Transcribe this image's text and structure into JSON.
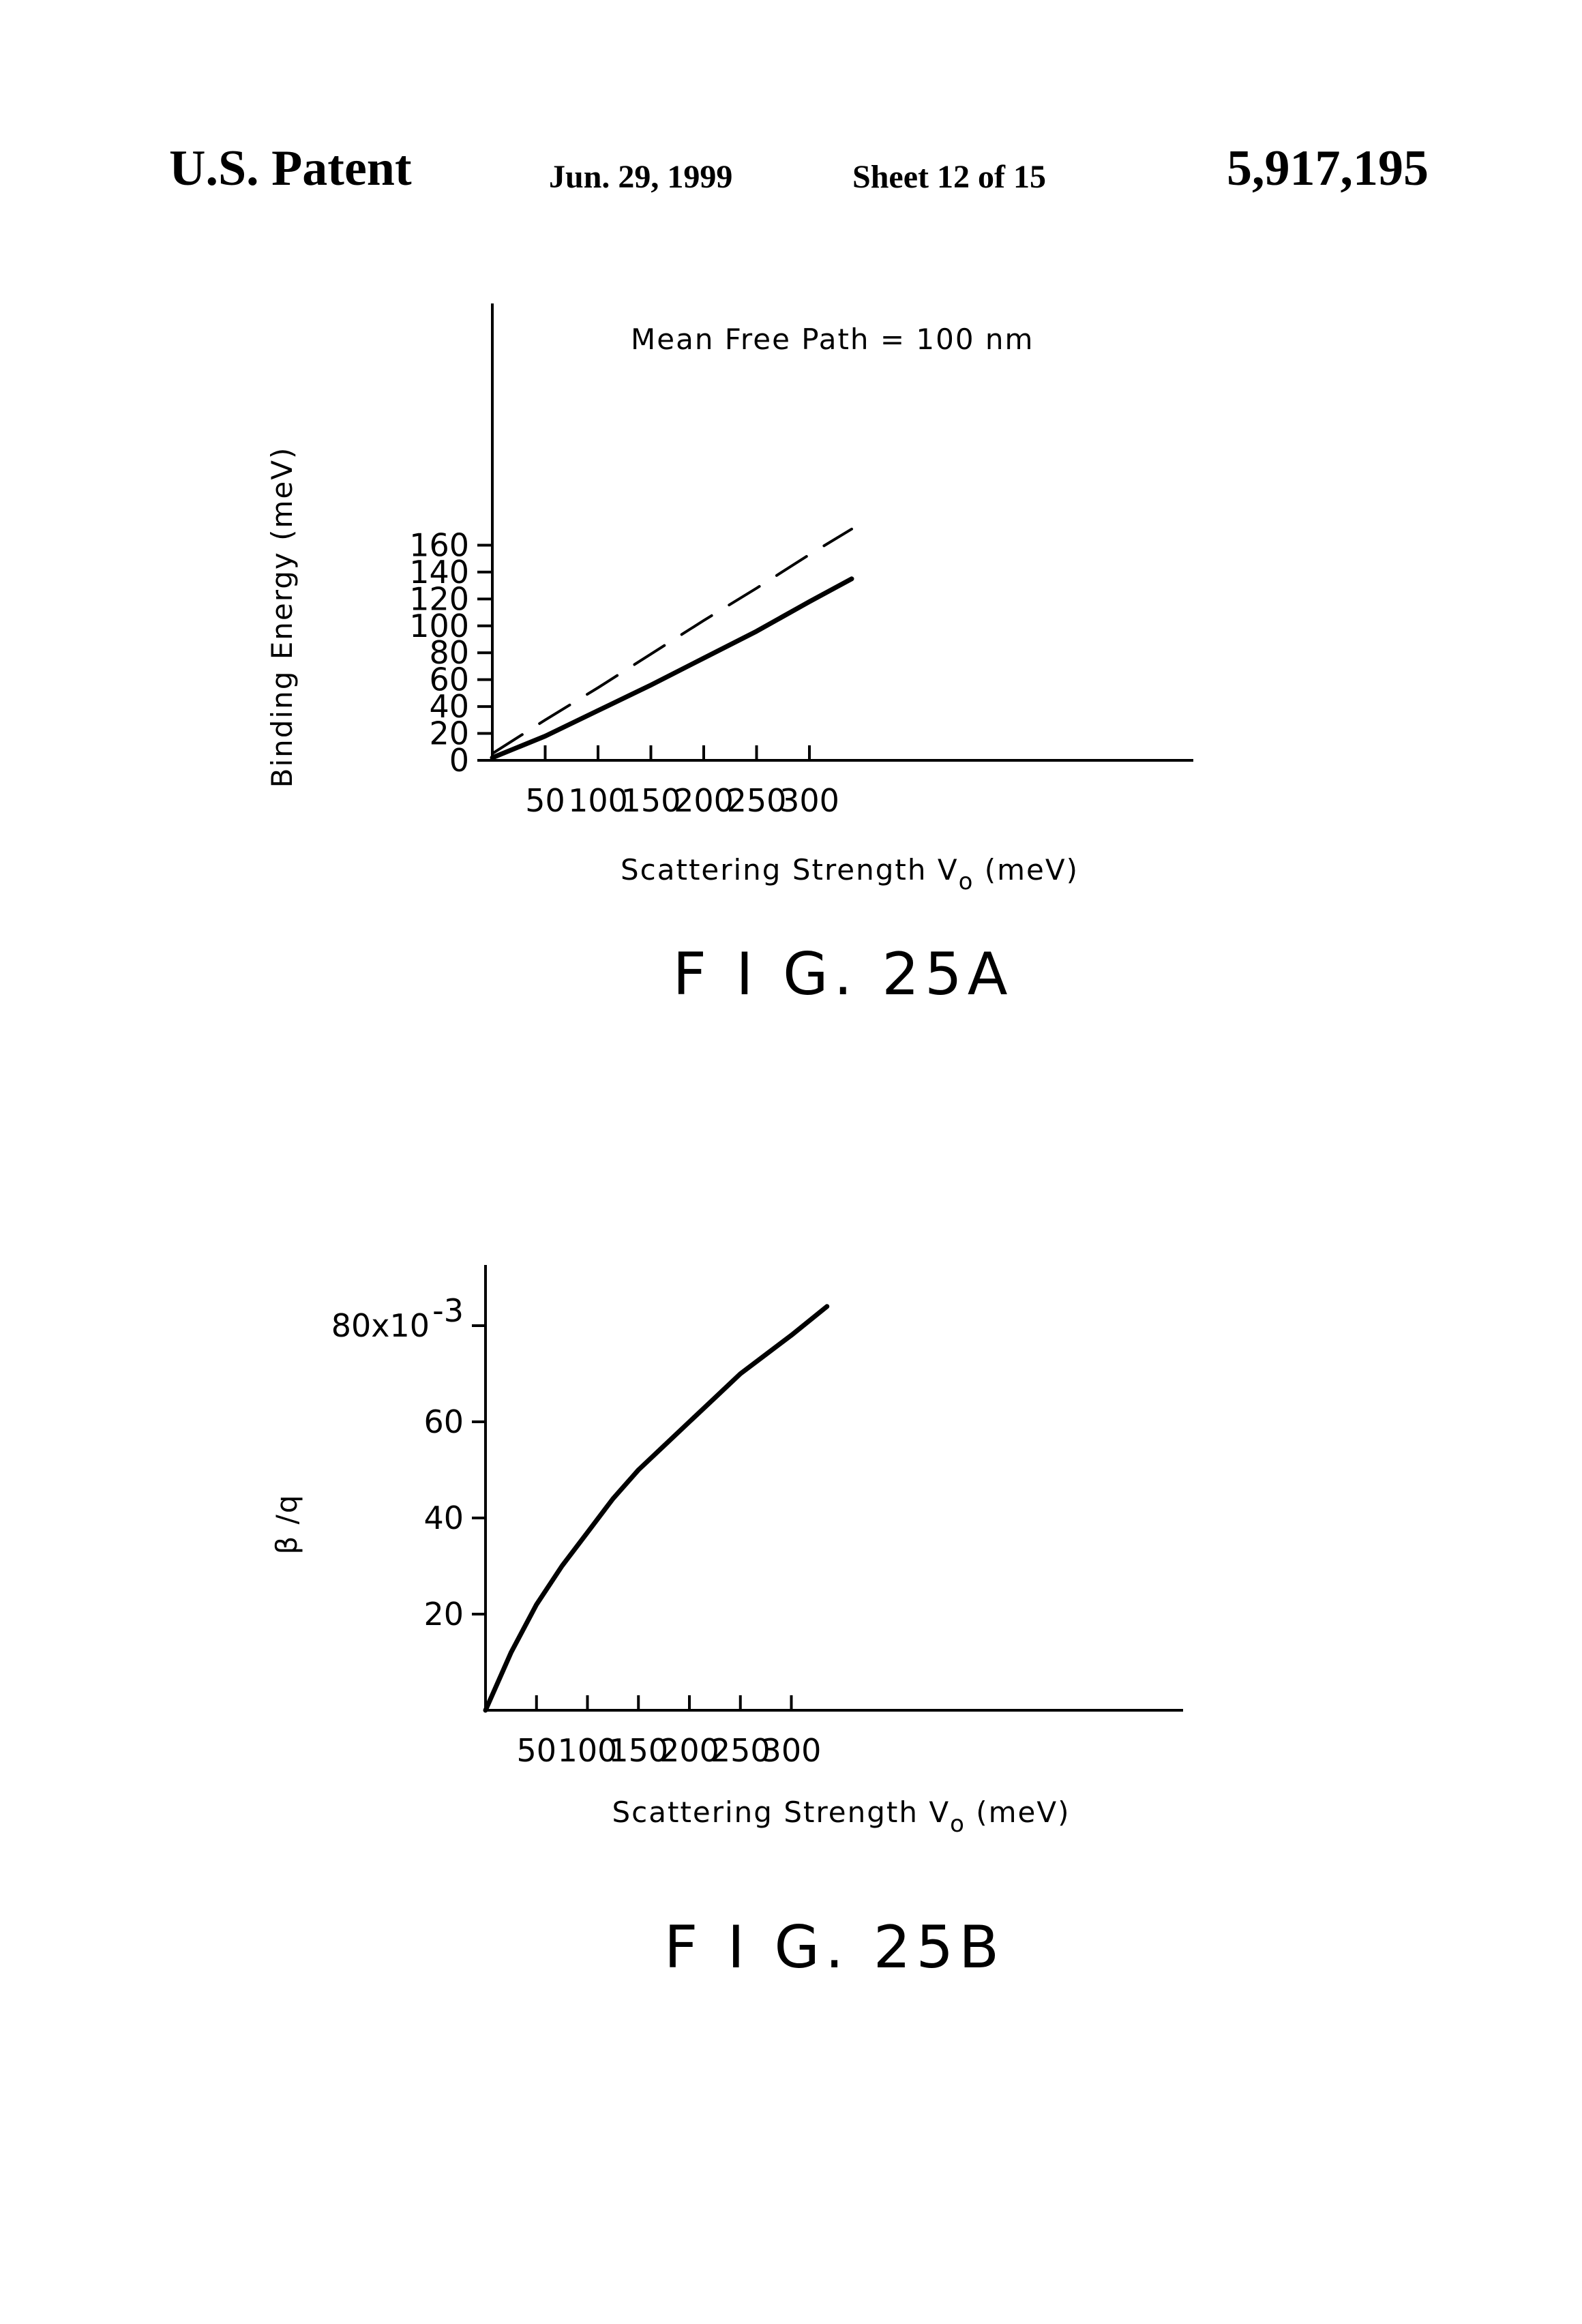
{
  "header": {
    "left": "U.S. Patent",
    "date": "Jun. 29, 1999",
    "sheet": "Sheet 12 of 15",
    "patent_number": "5,917,195"
  },
  "chart_data": [
    {
      "type": "line",
      "caption": "F I G. 25A",
      "annotation": "Mean Free Path = 100 nm",
      "xlabel": "Scattering Strength V",
      "xlabel_sub": "o",
      "xlabel_unit": "(meV)",
      "ylabel": "Binding Energy (meV)",
      "xlim": [
        0,
        340
      ],
      "ylim": [
        0,
        170
      ],
      "x_ticks": [
        50,
        100,
        150,
        200,
        250,
        300
      ],
      "x_tick_labels": [
        "50",
        "100",
        "150",
        "200",
        "250",
        "300"
      ],
      "y_ticks": [
        0,
        20,
        40,
        60,
        80,
        100,
        120,
        140,
        160
      ],
      "y_tick_labels": [
        "0",
        "20",
        "40",
        "60",
        "80",
        "100",
        "120",
        "140",
        "160"
      ],
      "series": [
        {
          "style": "solid",
          "x": [
            0,
            50,
            100,
            150,
            200,
            250,
            300,
            340
          ],
          "y": [
            2,
            18,
            37,
            56,
            76,
            96,
            118,
            135
          ]
        },
        {
          "style": "dashed",
          "x": [
            0,
            50,
            100,
            150,
            200,
            250,
            300,
            340
          ],
          "y": [
            5,
            30,
            54,
            79,
            104,
            128,
            153,
            172
          ]
        }
      ]
    },
    {
      "type": "line",
      "caption": "F I G. 25B",
      "xlabel": "Scattering Strength V",
      "xlabel_sub": "o",
      "xlabel_unit": "(meV)",
      "ylabel": "β /q",
      "xlim": [
        0,
        335
      ],
      "ylim": [
        0,
        95
      ],
      "x_ticks": [
        50,
        100,
        150,
        200,
        250,
        300
      ],
      "x_tick_labels": [
        "50",
        "100",
        "150",
        "200",
        "250",
        "300"
      ],
      "y_ticks": [
        20,
        40,
        60,
        80
      ],
      "y_tick_labels": [
        "20",
        "40",
        "60",
        "80x10"
      ],
      "y_top_exponent": "-3",
      "series": [
        {
          "style": "solid",
          "x": [
            0,
            25,
            50,
            75,
            100,
            125,
            150,
            175,
            200,
            225,
            250,
            275,
            300,
            335
          ],
          "y": [
            0,
            12,
            22,
            30,
            37,
            44,
            50,
            55,
            60,
            65,
            70,
            74,
            78,
            84
          ]
        }
      ]
    }
  ]
}
